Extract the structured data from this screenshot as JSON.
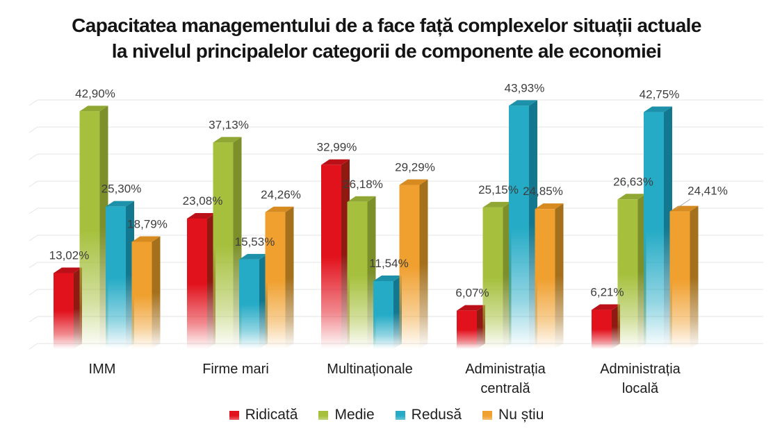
{
  "title": {
    "line1": "Capacitatea managementului de a face față complexelor situații actuale",
    "line2": "la nivelul principalelor categorii de componente ale economiei"
  },
  "chart_data": {
    "type": "bar",
    "variant": "3d-clustered-column",
    "title": "Capacitatea managementului de a face față complexelor situații actuale la nivelul principalelor categorii de componente ale economiei",
    "categories": [
      "IMM",
      "Firme mari",
      "Multinaționale",
      "Administrația centrală",
      "Administrația locală"
    ],
    "series": [
      {
        "name": "Ridicată",
        "color": "#e2121d",
        "side_color": "#8e1a12",
        "top_color": "#bc1018",
        "values": [
          13.02,
          23.08,
          32.99,
          6.07,
          6.21
        ],
        "labels": [
          "13,02%",
          "23,08%",
          "32,99%",
          "6,07%",
          "6,21%"
        ]
      },
      {
        "name": "Medie",
        "color": "#a6c03d",
        "side_color": "#7c8f2b",
        "top_color": "#90a833",
        "values": [
          42.9,
          37.13,
          26.18,
          25.15,
          26.63
        ],
        "labels": [
          "42,90%",
          "37,13%",
          "26,18%",
          "25,15%",
          "26,63%"
        ]
      },
      {
        "name": "Redusă",
        "color": "#25abc6",
        "side_color": "#13788f",
        "top_color": "#1c91a9",
        "values": [
          25.3,
          15.53,
          11.54,
          43.93,
          42.75
        ],
        "labels": [
          "25,30%",
          "15,53%",
          "11,54%",
          "43,93%",
          "42,75%"
        ]
      },
      {
        "name": "Nu știu",
        "color": "#f0a02f",
        "side_color": "#a5701c",
        "top_color": "#d68a1f",
        "values": [
          18.79,
          24.26,
          29.29,
          24.85,
          24.41
        ],
        "labels": [
          "18,79%",
          "24,26%",
          "29,29%",
          "24,85%",
          "24,41%"
        ]
      }
    ],
    "ylim": [
      0,
      50
    ],
    "gridline_step_pct": 5,
    "grid": true,
    "data_labels": true,
    "legend_position": "bottom",
    "decimal_separator": ","
  }
}
